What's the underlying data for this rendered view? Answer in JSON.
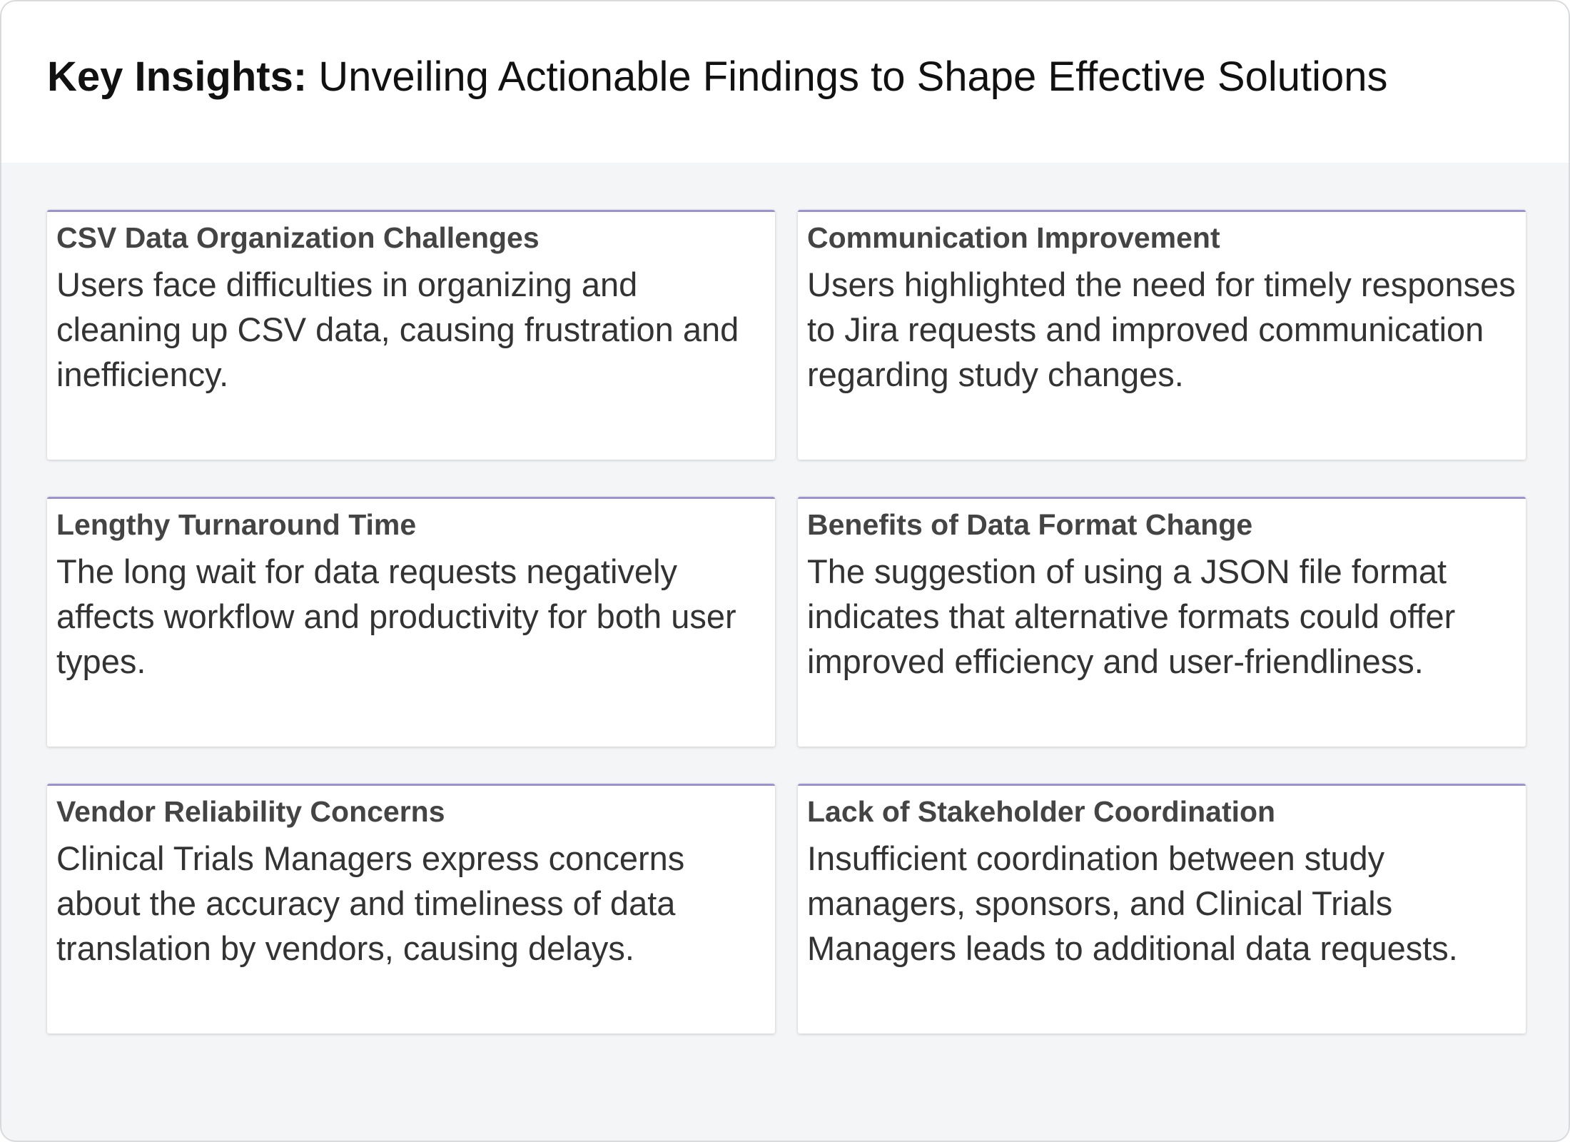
{
  "header": {
    "title_bold": "Key Insights:",
    "title_rest": " Unveiling Actionable Findings to Shape Effective Solutions"
  },
  "cards": [
    {
      "title": "CSV Data Organization Challenges",
      "body": "Users face difficulties in organizing and cleaning up CSV data, causing frustration and inefficiency."
    },
    {
      "title": "Communication Improvement",
      "body": "Users highlighted the need for timely responses to Jira requests and improved communication regarding study changes."
    },
    {
      "title": "Lengthy Turnaround Time",
      "body": "The long wait for data requests negatively affects workflow and productivity for both user types."
    },
    {
      "title": "Benefits of Data Format Change",
      "body": "The suggestion of using a JSON file format indicates that alternative formats could offer improved efficiency and user-friendliness."
    },
    {
      "title": "Vendor Reliability Concerns",
      "body": "Clinical Trials Managers express concerns about the accuracy and timeliness of data translation by vendors, causing delays."
    },
    {
      "title": "Lack of Stakeholder Coordination",
      "body": "Insufficient coordination between study managers, sponsors, and Clinical Trials Managers leads to additional data requests."
    }
  ],
  "colors": {
    "card_accent": "#9a93cf",
    "page_background": "#f4f5f7",
    "header_background": "#ffffff"
  }
}
